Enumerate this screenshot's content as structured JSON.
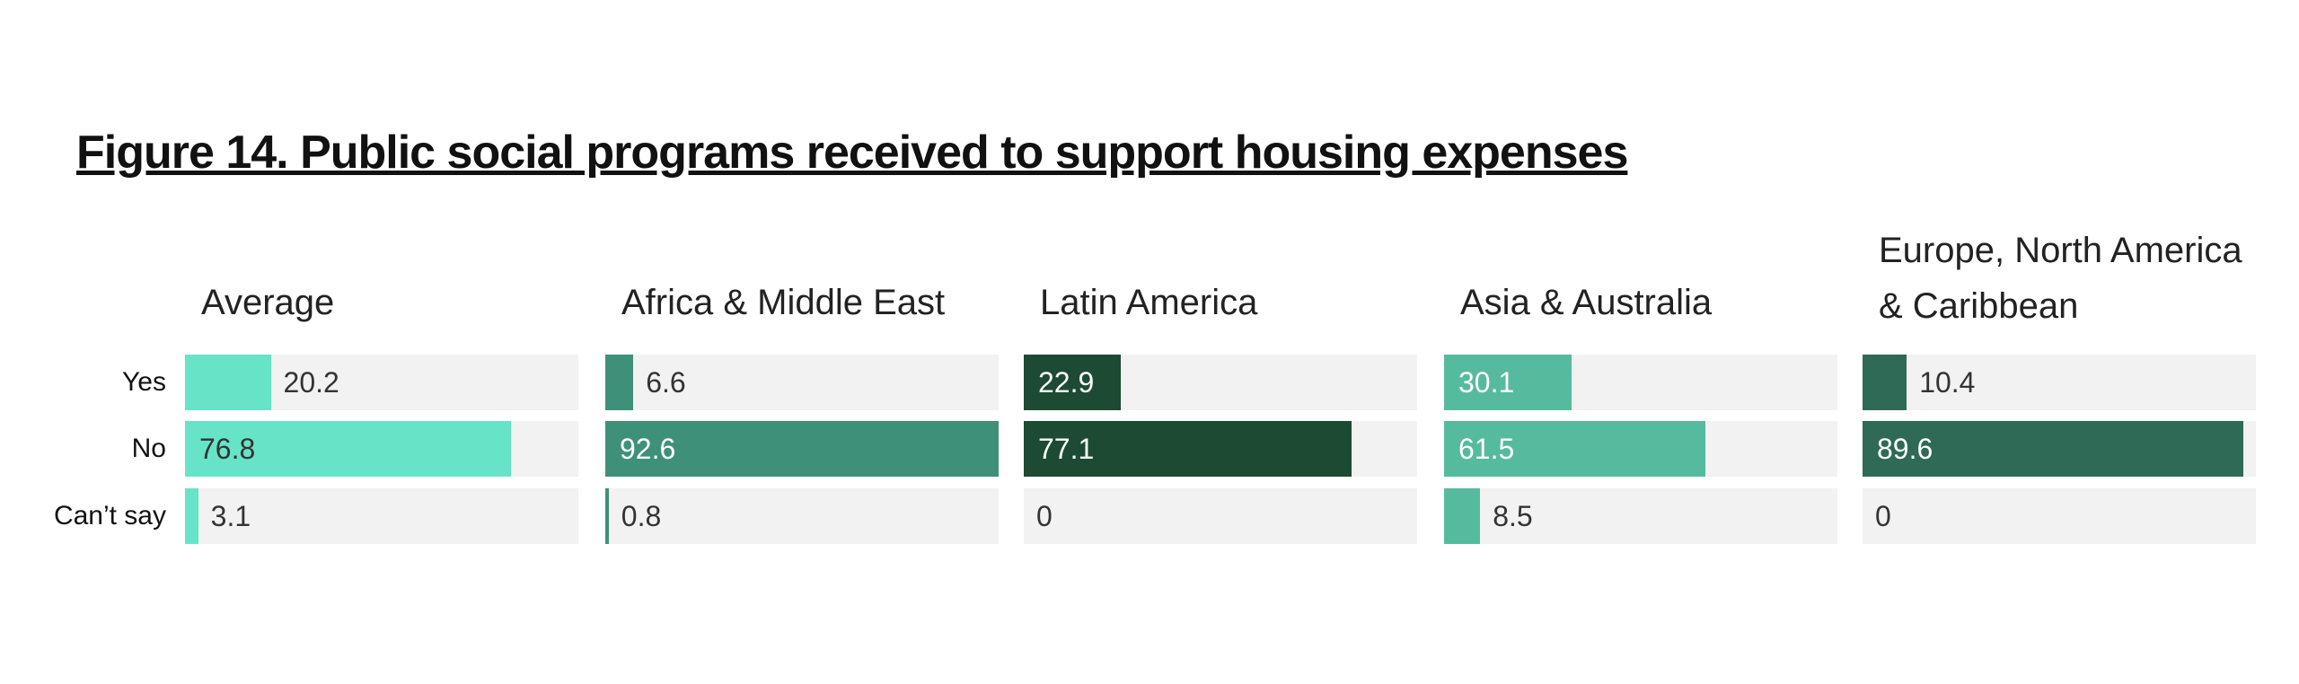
{
  "title": "Figure 14. Public social programs received to support housing expenses",
  "categories": [
    "Yes",
    "No",
    "Can’t say"
  ],
  "xlim": [
    0,
    92.6
  ],
  "chart_data": [
    {
      "type": "bar",
      "title": "Average",
      "values": [
        20.2,
        76.8,
        3.1
      ],
      "color": "#67e3c8",
      "label_color": "#333333"
    },
    {
      "type": "bar",
      "title": "Africa & Middle East",
      "values": [
        6.6,
        92.6,
        0.8
      ],
      "color": "#3f9079",
      "label_color": "#ffffff"
    },
    {
      "type": "bar",
      "title": "Latin America",
      "values": [
        22.9,
        77.1,
        0
      ],
      "color": "#1d4a33",
      "label_color": "#ffffff"
    },
    {
      "type": "bar",
      "title": "Asia & Australia",
      "values": [
        30.1,
        61.5,
        8.5
      ],
      "color": "#56bb9e",
      "label_color": "#ffffff"
    },
    {
      "type": "bar",
      "title": "Europe, North America & Caribbean",
      "values": [
        10.4,
        89.6,
        0
      ],
      "color": "#2e6a55",
      "label_color": "#ffffff"
    }
  ]
}
